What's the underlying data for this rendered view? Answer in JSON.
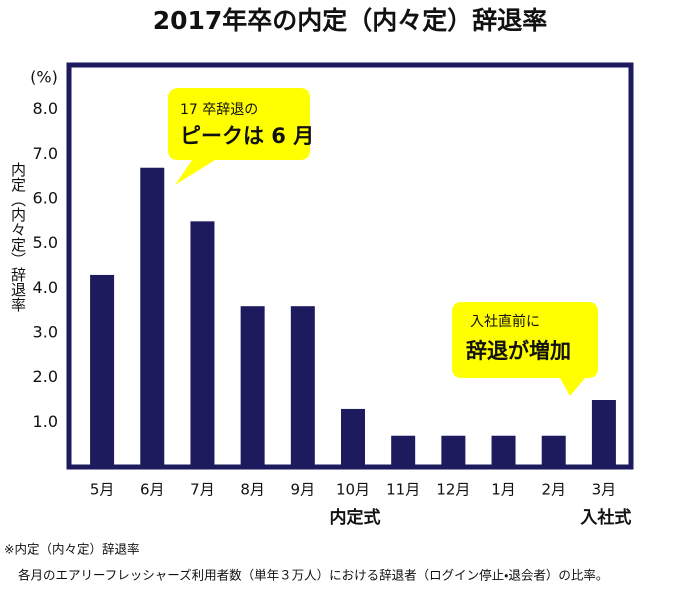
{
  "chart_data": {
    "type": "bar",
    "title": "2017年卒の内定（内々定）辞退率",
    "unit_label": "(%)",
    "y_axis_label": "内定（内々定）辞退率",
    "categories": [
      "5月",
      "6月",
      "7月",
      "8月",
      "9月",
      "10月",
      "11月",
      "12月",
      "1月",
      "2月",
      "3月"
    ],
    "values": [
      4.3,
      6.7,
      5.5,
      3.6,
      3.6,
      1.3,
      0.7,
      0.7,
      0.7,
      0.7,
      1.5
    ],
    "color": "#1e1a5e",
    "ylim": [
      0,
      9
    ],
    "yticks": [
      {
        "value": 1,
        "label": "1.0"
      },
      {
        "value": 2,
        "label": "2.0"
      },
      {
        "value": 3,
        "label": "3.0"
      },
      {
        "value": 4,
        "label": "4.0"
      },
      {
        "value": 5,
        "label": "5.0"
      },
      {
        "value": 6,
        "label": "6.0"
      },
      {
        "value": 7,
        "label": "7.0"
      },
      {
        "value": 8,
        "label": "8.0"
      }
    ],
    "grid": false,
    "events": [
      {
        "category_index": 5,
        "label": "内定式"
      },
      {
        "category_index": 10,
        "label": "入社式"
      }
    ],
    "callouts": [
      {
        "lines": [
          "17 卒辞退の",
          "ピークは 6 月"
        ]
      },
      {
        "lines": [
          "入社直前に",
          "辞退が増加"
        ]
      }
    ],
    "notes": [
      "※内定（内々定）辞退率",
      "各月のエアリーフレッシャーズ利用者数（単年３万人）における辞退者（ログイン停止・退会者）の比率。"
    ]
  }
}
